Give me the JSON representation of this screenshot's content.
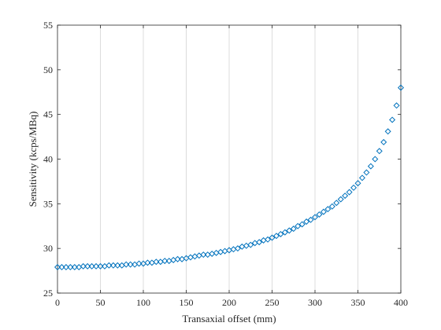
{
  "chart_data": {
    "type": "scatter",
    "title": "",
    "xlabel": "Transaxial offset (mm)",
    "ylabel": "Sensitivity (kcps/MBq)",
    "xlim": [
      0,
      400
    ],
    "ylim": [
      25,
      55
    ],
    "xticks": [
      0,
      50,
      100,
      150,
      200,
      250,
      300,
      350,
      400
    ],
    "yticks": [
      25,
      30,
      35,
      40,
      45,
      50,
      55
    ],
    "xtick_labels": [
      "0",
      "50",
      "100",
      "150",
      "200",
      "250",
      "300",
      "350",
      "400"
    ],
    "ytick_labels": [
      "25",
      "30",
      "35",
      "40",
      "45",
      "50",
      "55"
    ],
    "grid": "x-only",
    "marker": "diamond",
    "marker_color": "#0072BD",
    "series": [
      {
        "x": [
          0,
          5,
          10,
          15,
          20,
          25,
          30,
          35,
          40,
          45,
          50,
          55,
          60,
          65,
          70,
          75,
          80,
          85,
          90,
          95,
          100,
          105,
          110,
          115,
          120,
          125,
          130,
          135,
          140,
          145,
          150,
          155,
          160,
          165,
          170,
          175,
          180,
          185,
          190,
          195,
          200,
          205,
          210,
          215,
          220,
          225,
          230,
          235,
          240,
          245,
          250,
          255,
          260,
          265,
          270,
          275,
          280,
          285,
          290,
          295,
          300,
          305,
          310,
          315,
          320,
          325,
          330,
          335,
          340,
          345,
          350,
          355,
          360,
          365,
          370,
          375,
          380,
          385,
          390,
          395,
          400
        ],
        "y": [
          27.9,
          27.9,
          27.9,
          27.9,
          27.9,
          27.9,
          28.0,
          28.0,
          28.0,
          28.0,
          28.0,
          28.0,
          28.1,
          28.1,
          28.1,
          28.1,
          28.2,
          28.2,
          28.2,
          28.3,
          28.3,
          28.4,
          28.4,
          28.5,
          28.5,
          28.6,
          28.6,
          28.7,
          28.8,
          28.8,
          28.9,
          29.0,
          29.1,
          29.2,
          29.3,
          29.3,
          29.4,
          29.5,
          29.6,
          29.7,
          29.8,
          29.9,
          30.0,
          30.2,
          30.3,
          30.4,
          30.6,
          30.7,
          30.9,
          31.0,
          31.2,
          31.4,
          31.6,
          31.8,
          32.0,
          32.2,
          32.5,
          32.7,
          33.0,
          33.2,
          33.5,
          33.8,
          34.1,
          34.4,
          34.7,
          35.1,
          35.5,
          35.9,
          36.3,
          36.8,
          37.3,
          37.9,
          38.5,
          39.2,
          40.0,
          40.9,
          41.9,
          43.1,
          44.4,
          46.0,
          48.0
        ]
      }
    ]
  }
}
